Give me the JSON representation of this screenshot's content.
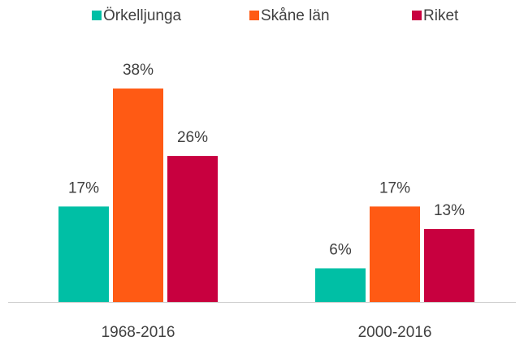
{
  "chart_data": {
    "type": "bar",
    "categories": [
      "1968-2016",
      "2000-2016"
    ],
    "series": [
      {
        "name": "Örkelljunga",
        "color": "#00bfa5",
        "values": [
          17,
          6
        ],
        "value_labels": [
          "17%",
          "6%"
        ]
      },
      {
        "name": "Skåne län",
        "color": "#ff5a14",
        "values": [
          38,
          17
        ],
        "value_labels": [
          "38%",
          "17%"
        ]
      },
      {
        "name": "Riket",
        "color": "#c8003f",
        "values": [
          26,
          13
        ],
        "value_labels": [
          "26%",
          "13%"
        ]
      }
    ],
    "legend": "top"
  }
}
